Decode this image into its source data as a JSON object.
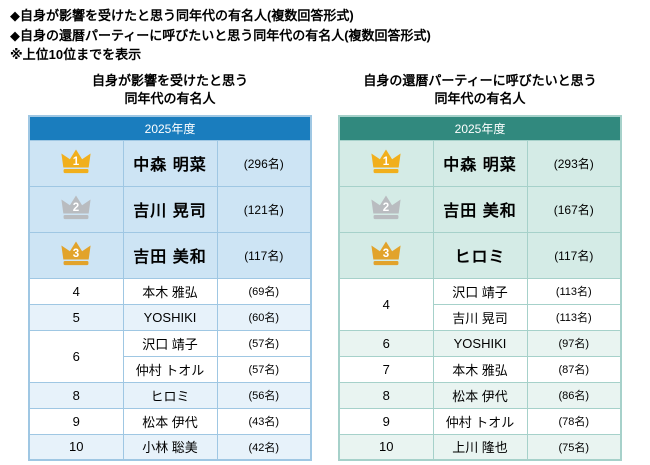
{
  "intro": {
    "line1": "◆自身が影響を受けたと思う同年代の有名人(複数回答形式)",
    "line2": "◆自身の還暦パーティーに呼びたいと思う同年代の有名人(複数回答形式)",
    "line3": "※上位10位までを表示"
  },
  "colors": {
    "themes": {
      "blue": {
        "header": "#1a7dbe",
        "border": "#9fc7e3",
        "tint": "#cde4f4",
        "alt": "#e7f2fa"
      },
      "teal": {
        "header": "#31897e",
        "border": "#a6d1ca",
        "tint": "#d4ebe6",
        "alt": "#e9f4f1"
      }
    },
    "crown_gold": "#f1af1c",
    "crown_silver": "#b9bcc0",
    "crown_bronze": "#e2a32b"
  },
  "chart_data": [
    {
      "type": "table",
      "title": "自身が影響を受けたと思う同年代の有名人",
      "title_lines": [
        "自身が影響を受けたと思う",
        "同年代の有名人"
      ],
      "year": "2025年度",
      "theme": "blue",
      "rows": [
        {
          "rank": 1,
          "crown": "gold",
          "name": "中森 明菜",
          "count": 296,
          "count_label": "(296名)",
          "bg": "tint"
        },
        {
          "rank": 2,
          "crown": "silver",
          "name": "吉川 晃司",
          "count": 121,
          "count_label": "(121名)",
          "bg": "tint"
        },
        {
          "rank": 3,
          "crown": "bronze",
          "name": "吉田 美和",
          "count": 117,
          "count_label": "(117名)",
          "bg": "tint"
        },
        {
          "rank": 4,
          "name": "本木 雅弘",
          "count": 69,
          "count_label": "(69名)",
          "bg": "white"
        },
        {
          "rank": 5,
          "name": "YOSHIKI",
          "count": 60,
          "count_label": "(60名)",
          "bg": "alt"
        },
        {
          "rank": 6,
          "span": 2,
          "name": "沢口 靖子",
          "count": 57,
          "count_label": "(57名)",
          "bg": "white"
        },
        {
          "rank": 6,
          "tied": true,
          "name": "仲村 トオル",
          "count": 57,
          "count_label": "(57名)",
          "bg": "white"
        },
        {
          "rank": 8,
          "name": "ヒロミ",
          "count": 56,
          "count_label": "(56名)",
          "bg": "alt"
        },
        {
          "rank": 9,
          "name": "松本 伊代",
          "count": 43,
          "count_label": "(43名)",
          "bg": "white"
        },
        {
          "rank": 10,
          "name": "小林 聡美",
          "count": 42,
          "count_label": "(42名)",
          "bg": "alt"
        }
      ]
    },
    {
      "type": "table",
      "title": "自身の還暦パーティーに呼びたいと思う同年代の有名人",
      "title_lines": [
        "自身の還暦パーティーに呼びたいと思う",
        "同年代の有名人"
      ],
      "year": "2025年度",
      "theme": "teal",
      "rows": [
        {
          "rank": 1,
          "crown": "gold",
          "name": "中森 明菜",
          "count": 293,
          "count_label": "(293名)",
          "bg": "tint"
        },
        {
          "rank": 2,
          "crown": "silver",
          "name": "吉田 美和",
          "count": 167,
          "count_label": "(167名)",
          "bg": "tint"
        },
        {
          "rank": 3,
          "crown": "bronze",
          "name": "ヒロミ",
          "count": 117,
          "count_label": "(117名)",
          "bg": "tint"
        },
        {
          "rank": 4,
          "span": 2,
          "name": "沢口 靖子",
          "count": 113,
          "count_label": "(113名)",
          "bg": "white"
        },
        {
          "rank": 4,
          "tied": true,
          "name": "吉川 晃司",
          "count": 113,
          "count_label": "(113名)",
          "bg": "white"
        },
        {
          "rank": 6,
          "name": "YOSHIKI",
          "count": 97,
          "count_label": "(97名)",
          "bg": "alt"
        },
        {
          "rank": 7,
          "name": "本木 雅弘",
          "count": 87,
          "count_label": "(87名)",
          "bg": "white"
        },
        {
          "rank": 8,
          "name": "松本 伊代",
          "count": 86,
          "count_label": "(86名)",
          "bg": "alt"
        },
        {
          "rank": 9,
          "name": "仲村 トオル",
          "count": 78,
          "count_label": "(78名)",
          "bg": "white"
        },
        {
          "rank": 10,
          "name": "上川 隆也",
          "count": 75,
          "count_label": "(75名)",
          "bg": "alt"
        }
      ]
    }
  ]
}
